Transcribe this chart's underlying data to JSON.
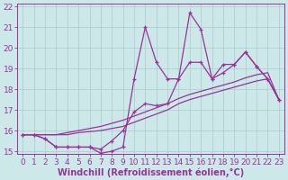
{
  "x_values": [
    0,
    1,
    2,
    3,
    4,
    5,
    6,
    7,
    8,
    9,
    10,
    11,
    12,
    13,
    14,
    15,
    16,
    17,
    18,
    19,
    20,
    21,
    22,
    23
  ],
  "line_jagged_y": [
    15.8,
    15.8,
    15.6,
    15.2,
    15.2,
    15.2,
    15.2,
    14.9,
    15.0,
    15.2,
    18.5,
    21.0,
    19.3,
    18.5,
    18.5,
    21.7,
    20.9,
    18.5,
    19.2,
    19.2,
    19.8,
    19.1,
    18.5,
    17.5
  ],
  "line_smooth1_y": [
    15.8,
    15.8,
    15.8,
    15.8,
    15.8,
    15.9,
    15.95,
    16.0,
    16.1,
    16.2,
    16.4,
    16.6,
    16.8,
    17.0,
    17.3,
    17.5,
    17.65,
    17.8,
    17.95,
    18.1,
    18.25,
    18.4,
    18.5,
    17.5
  ],
  "line_smooth2_y": [
    15.8,
    15.8,
    15.8,
    15.8,
    15.9,
    16.0,
    16.1,
    16.2,
    16.35,
    16.5,
    16.7,
    16.9,
    17.1,
    17.3,
    17.55,
    17.75,
    17.9,
    18.05,
    18.2,
    18.35,
    18.55,
    18.7,
    18.8,
    17.5
  ],
  "line_medium_y": [
    15.8,
    15.8,
    15.6,
    15.2,
    15.2,
    15.2,
    15.2,
    15.1,
    15.5,
    16.0,
    16.9,
    17.3,
    17.2,
    17.3,
    18.5,
    19.3,
    19.3,
    18.5,
    18.8,
    19.2,
    19.8,
    19.1,
    18.5,
    17.5
  ],
  "bg_color": "#cce8e8",
  "line_color": "#993399",
  "grid_color": "#aacccc",
  "xlabel": "Windchill (Refroidissement éolien,°C)",
  "xlim_min": -0.5,
  "xlim_max": 23.5,
  "ylim_min": 14.85,
  "ylim_max": 22.15,
  "yticks": [
    15,
    16,
    17,
    18,
    19,
    20,
    21,
    22
  ],
  "xticks": [
    0,
    1,
    2,
    3,
    4,
    5,
    6,
    7,
    8,
    9,
    10,
    11,
    12,
    13,
    14,
    15,
    16,
    17,
    18,
    19,
    20,
    21,
    22,
    23
  ],
  "label_fontsize": 7.0,
  "tick_fontsize": 6.5
}
